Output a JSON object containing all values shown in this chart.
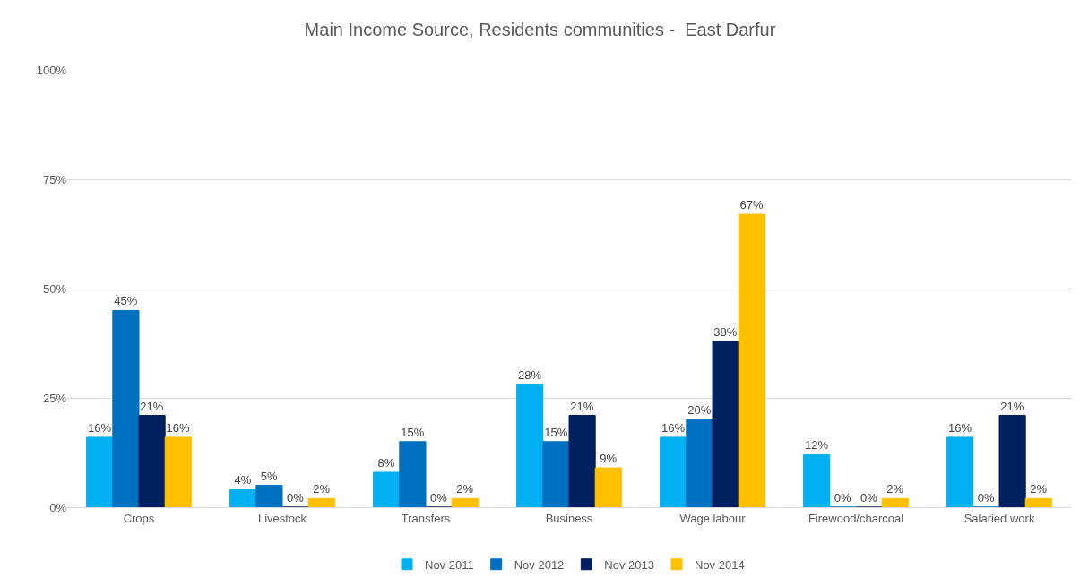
{
  "chart_data": {
    "type": "bar",
    "title": "Main Income Source, Residents communities -  East Darfur",
    "categories": [
      "Crops",
      "Livestock",
      "Transfers",
      "Business",
      "Wage labour",
      "Firewood/charcoal",
      "Salaried work"
    ],
    "series": [
      {
        "name": "Nov 2011",
        "color": "#00b0f0",
        "values": [
          16,
          4,
          8,
          28,
          16,
          12,
          16
        ],
        "value_labels": [
          "16%",
          "4%",
          "8%",
          "28%",
          "16%",
          "12%",
          "16%"
        ]
      },
      {
        "name": "Nov 2012",
        "color": "#0070c0",
        "values": [
          45,
          5,
          15,
          15,
          20,
          0,
          0
        ],
        "value_labels": [
          "45%",
          "5%",
          "15%",
          "15%",
          "20%",
          "0%",
          "0%"
        ]
      },
      {
        "name": "Nov 2013",
        "color": "#002060",
        "values": [
          21,
          0,
          0,
          21,
          38,
          0,
          21
        ],
        "value_labels": [
          "21%",
          "0%",
          "0%",
          "21%",
          "38%",
          "0%",
          "21%"
        ]
      },
      {
        "name": "Nov 2014",
        "color": "#ffc000",
        "values": [
          16,
          2,
          2,
          9,
          67,
          2,
          2
        ],
        "value_labels": [
          "16%",
          "2%",
          "2%",
          "9%",
          "67%",
          "2%",
          "2%"
        ]
      }
    ],
    "ylim": [
      0,
      100
    ],
    "yticks": [
      {
        "value": 0,
        "label": "0%"
      },
      {
        "value": 25,
        "label": "25%"
      },
      {
        "value": 50,
        "label": "50%"
      },
      {
        "value": 75,
        "label": "75%"
      },
      {
        "value": 100,
        "label": "100%"
      }
    ],
    "grid": "y",
    "legend": "bottom"
  }
}
